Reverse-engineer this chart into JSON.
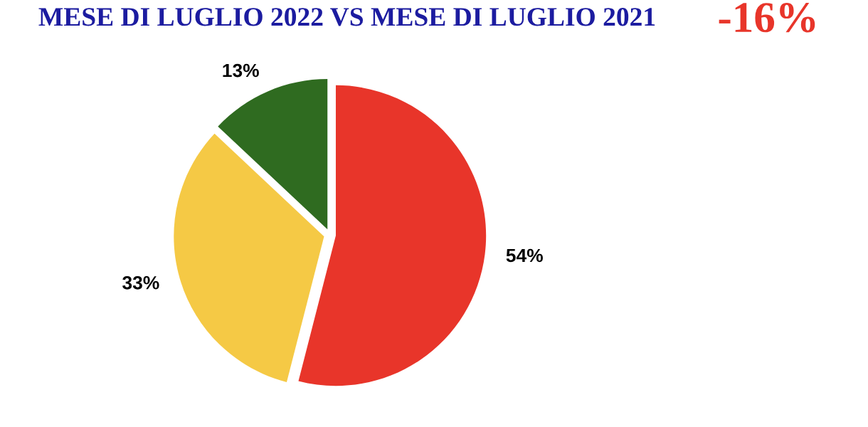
{
  "chart_data": {
    "type": "pie",
    "title": "MESE DI LUGLIO 2022 VS MESE DI LUGLIO 2021",
    "annotations": [
      "-16%"
    ],
    "categories": [
      null,
      null,
      null
    ],
    "values": [
      54,
      33,
      13
    ],
    "value_labels": [
      "54%",
      "33%",
      "13%"
    ],
    "colors": [
      "#e8352a",
      "#f5c945",
      "#2f6b20"
    ]
  }
}
